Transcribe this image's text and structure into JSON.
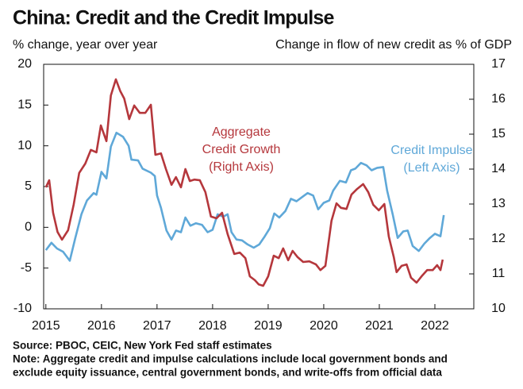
{
  "chart_data": {
    "type": "line",
    "title": "China: Credit and the Credit Impulse",
    "y_label": "% change, year over year",
    "y2_label": "Change in flow of new credit as % of GDP",
    "xlim": [
      2014.96,
      2022.7
    ],
    "xticks": [
      2015,
      2016,
      2017,
      2018,
      2019,
      2020,
      2021,
      2022
    ],
    "ylim": [
      -10,
      20
    ],
    "yticks": [
      -10,
      -5,
      0,
      5,
      10,
      15,
      20
    ],
    "y2lim": [
      10,
      17
    ],
    "y2ticks": [
      10,
      11,
      12,
      13,
      14,
      15,
      16,
      17
    ],
    "series": [
      {
        "name": "Credit Impulse (Left Axis)",
        "color": "#5fa8d8",
        "axis": "y",
        "x": [
          2015.0,
          2015.1,
          2015.2,
          2015.31,
          2015.43,
          2015.53,
          2015.64,
          2015.74,
          2015.86,
          2015.91,
          2016.0,
          2016.09,
          2016.17,
          2016.27,
          2016.39,
          2016.49,
          2016.54,
          2016.66,
          2016.74,
          2016.89,
          2016.96,
          2017.0,
          2017.07,
          2017.17,
          2017.26,
          2017.34,
          2017.43,
          2017.51,
          2017.6,
          2017.7,
          2017.81,
          2017.91,
          2018.0,
          2018.09,
          2018.19,
          2018.27,
          2018.34,
          2018.43,
          2018.53,
          2018.63,
          2018.74,
          2018.84,
          2018.94,
          2019.03,
          2019.11,
          2019.2,
          2019.31,
          2019.41,
          2019.51,
          2019.61,
          2019.71,
          2019.81,
          2019.9,
          2020.0,
          2020.1,
          2020.17,
          2020.29,
          2020.4,
          2020.49,
          2020.57,
          2020.67,
          2020.77,
          2020.86,
          2020.96,
          2021.07,
          2021.14,
          2021.24,
          2021.33,
          2021.43,
          2021.51,
          2021.6,
          2021.71,
          2021.81,
          2021.91,
          2022.0,
          2022.1,
          2022.16
        ],
        "values": [
          -2.8,
          -1.9,
          -2.6,
          -3.0,
          -4.1,
          -1.3,
          1.6,
          3.3,
          4.2,
          4.0,
          6.8,
          6.0,
          9.9,
          11.6,
          11.1,
          10.0,
          8.3,
          8.2,
          7.2,
          6.7,
          6.3,
          3.9,
          2.4,
          -0.4,
          -1.5,
          -0.4,
          -0.6,
          1.2,
          0.2,
          0.5,
          0.3,
          -0.6,
          -0.3,
          1.6,
          1.3,
          1.6,
          -0.6,
          -1.5,
          -1.6,
          -2.1,
          -2.5,
          -2.1,
          -1.1,
          -0.1,
          1.7,
          1.2,
          2.0,
          3.5,
          3.2,
          3.7,
          4.2,
          3.9,
          2.2,
          3.0,
          3.3,
          4.5,
          5.7,
          5.5,
          7.0,
          7.2,
          7.9,
          7.6,
          7.0,
          7.3,
          7.4,
          4.5,
          1.6,
          -1.3,
          -0.5,
          -0.4,
          -2.3,
          -2.9,
          -2.0,
          -1.3,
          -0.8,
          -1.1,
          1.5
        ]
      },
      {
        "name": "Aggregate Credit Growth (Right Axis)",
        "color": "#b5373c",
        "axis": "y2",
        "x": [
          2015.0,
          2015.06,
          2015.13,
          2015.21,
          2015.29,
          2015.4,
          2015.5,
          2015.6,
          2015.71,
          2015.81,
          2015.91,
          2015.99,
          2016.09,
          2016.17,
          2016.26,
          2016.34,
          2016.41,
          2016.5,
          2016.59,
          2016.69,
          2016.79,
          2016.89,
          2016.97,
          2017.07,
          2017.16,
          2017.26,
          2017.34,
          2017.43,
          2017.51,
          2017.59,
          2017.67,
          2017.77,
          2017.87,
          2017.97,
          2018.07,
          2018.17,
          2018.27,
          2018.39,
          2018.49,
          2018.59,
          2018.67,
          2018.76,
          2018.83,
          2018.91,
          2019.0,
          2019.1,
          2019.19,
          2019.27,
          2019.36,
          2019.44,
          2019.53,
          2019.63,
          2019.74,
          2019.86,
          2019.94,
          2020.03,
          2020.14,
          2020.23,
          2020.31,
          2020.41,
          2020.5,
          2020.6,
          2020.71,
          2020.8,
          2020.89,
          2020.99,
          2021.09,
          2021.17,
          2021.26,
          2021.31,
          2021.4,
          2021.49,
          2021.57,
          2021.67,
          2021.77,
          2021.86,
          2021.96,
          2022.04,
          2022.1,
          2022.14
        ],
        "values": [
          13.48,
          13.68,
          12.75,
          12.2,
          11.98,
          12.25,
          12.98,
          13.89,
          14.16,
          14.55,
          14.48,
          15.25,
          14.8,
          16.11,
          16.57,
          16.23,
          16.02,
          15.43,
          15.82,
          15.61,
          15.61,
          15.84,
          14.41,
          14.45,
          14.0,
          13.55,
          13.77,
          13.48,
          14.0,
          13.66,
          13.7,
          13.68,
          13.34,
          12.64,
          12.59,
          12.75,
          12.14,
          11.57,
          11.61,
          11.45,
          10.93,
          10.82,
          10.7,
          10.66,
          10.93,
          11.52,
          11.45,
          11.73,
          11.39,
          11.66,
          11.48,
          11.34,
          11.36,
          11.27,
          11.11,
          11.23,
          12.52,
          13.02,
          12.89,
          12.86,
          13.27,
          13.43,
          13.57,
          13.34,
          12.98,
          12.82,
          13.0,
          12.07,
          11.48,
          11.05,
          11.23,
          11.27,
          10.89,
          10.75,
          10.95,
          11.11,
          11.11,
          11.25,
          11.11,
          11.41
        ]
      }
    ],
    "annotations": [
      {
        "lines": [
          "Aggregate",
          "Credit Growth",
          "(Right Axis)"
        ],
        "color": "#b5373c"
      },
      {
        "lines": [
          "Credit Impulse",
          "(Left Axis)"
        ],
        "color": "#5fa8d8"
      }
    ],
    "source": "Source: PBOC, CEIC, New York Fed staff estimates",
    "note": [
      "Note: Aggregate credit and impulse calculations include local government bonds and",
      "exclude equity issuance, central government bonds, and write-offs from official data"
    ]
  }
}
